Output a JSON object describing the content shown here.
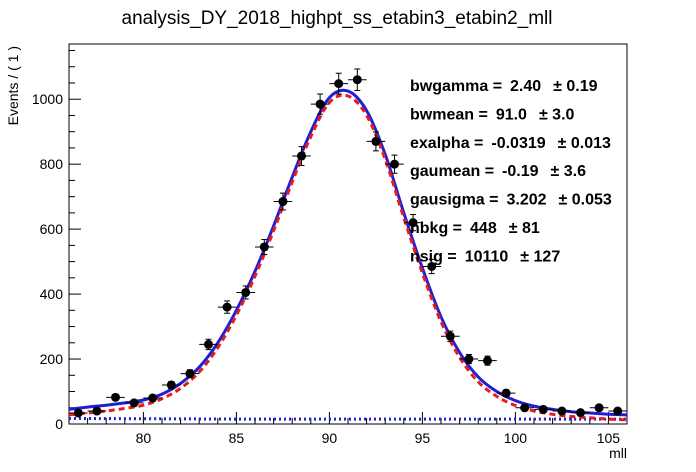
{
  "chart_data": {
    "type": "scatter",
    "title": "analysis_DY_2018_highpt_ss_etabin3_etabin2_mll",
    "xlabel": "mll",
    "ylabel": "Events / ( 1 )",
    "xlim": [
      76,
      106
    ],
    "ylim": [
      0,
      1170
    ],
    "xticks": [
      80,
      85,
      90,
      95,
      100,
      105
    ],
    "yticks": [
      0,
      200,
      400,
      600,
      800,
      1000
    ],
    "grid": false,
    "series": [
      {
        "style": "black markers with error bars",
        "color": "#000000",
        "x": [
          76.5,
          77.5,
          78.5,
          79.5,
          80.5,
          81.5,
          82.5,
          83.5,
          84.5,
          85.5,
          86.5,
          87.5,
          88.5,
          89.5,
          90.5,
          91.5,
          92.5,
          93.5,
          94.5,
          95.5,
          96.5,
          97.5,
          98.5,
          99.5,
          100.5,
          101.5,
          102.5,
          103.5,
          104.5,
          105.5
        ],
        "y": [
          34,
          40,
          82,
          65,
          80,
          120,
          155,
          245,
          360,
          405,
          545,
          685,
          825,
          985,
          1048,
          1060,
          870,
          800,
          620,
          485,
          270,
          200,
          195,
          95,
          50,
          45,
          40,
          35,
          50,
          40
        ],
        "yerr": [
          6,
          6,
          9,
          8,
          9,
          11,
          12,
          16,
          19,
          20,
          23,
          26,
          29,
          31,
          32,
          33,
          29,
          28,
          25,
          22,
          16,
          14,
          14,
          10,
          7,
          7,
          6,
          6,
          7,
          6
        ]
      },
      {
        "style": "solid line",
        "color": "#1f1fd6",
        "function": "total fit",
        "x": [
          76,
          77,
          78,
          79,
          80,
          81,
          82,
          83,
          84,
          85,
          86,
          87,
          88,
          89,
          90,
          91,
          92,
          93,
          94,
          95,
          96,
          97,
          98,
          99,
          100,
          101,
          102,
          103,
          104,
          105,
          106
        ],
        "y": [
          45,
          52,
          58,
          65,
          74,
          92,
          125,
          175,
          250,
          350,
          470,
          610,
          760,
          900,
          1005,
          1025,
          965,
          830,
          650,
          480,
          330,
          220,
          145,
          100,
          72,
          55,
          45,
          38,
          34,
          30,
          28
        ]
      },
      {
        "style": "dashed line",
        "color": "#e81b1b",
        "function": "signal",
        "x": [
          76,
          77,
          78,
          79,
          80,
          81,
          82,
          83,
          84,
          85,
          86,
          87,
          88,
          89,
          90,
          91,
          92,
          93,
          94,
          95,
          96,
          97,
          98,
          99,
          100,
          101,
          102,
          103,
          104,
          105,
          106
        ],
        "y": [
          28,
          34,
          40,
          48,
          58,
          78,
          110,
          160,
          235,
          335,
          455,
          595,
          745,
          885,
          990,
          1010,
          950,
          815,
          635,
          465,
          315,
          205,
          130,
          85,
          57,
          40,
          30,
          23,
          19,
          15,
          13
        ]
      },
      {
        "style": "dotted line",
        "color": "#1f1fd6",
        "function": "background",
        "x": [
          76,
          81,
          86,
          91,
          96,
          101,
          106
        ],
        "y": [
          17,
          16,
          15,
          15,
          15,
          15,
          15
        ]
      }
    ],
    "annotations": [
      {
        "name": "bwgamma =",
        "value": "2.40",
        "error": "± 0.19"
      },
      {
        "name": "bwmean =",
        "value": "91.0",
        "error": "± 3.0"
      },
      {
        "name": "exalpha =",
        "value": "-0.0319",
        "error": "± 0.013"
      },
      {
        "name": "gaumean =",
        "value": "-0.19",
        "error": "± 3.6"
      },
      {
        "name": "gausigma =",
        "value": "3.202",
        "error": "± 0.053"
      },
      {
        "name": "nbkg =",
        "value": "448",
        "error": "± 81"
      },
      {
        "name": "nsig =",
        "value": "10110",
        "error": "± 127"
      }
    ]
  }
}
